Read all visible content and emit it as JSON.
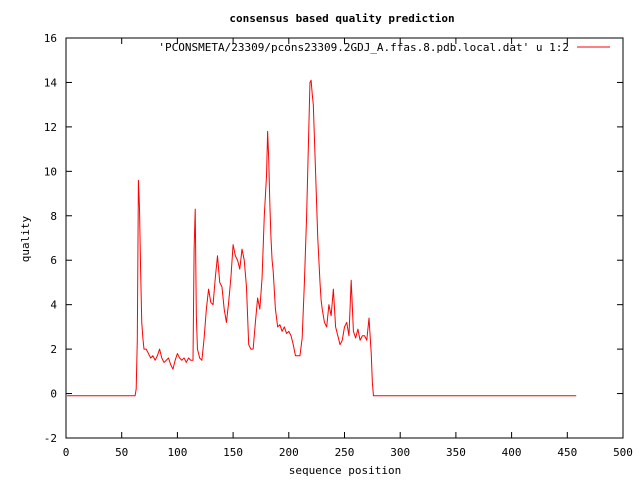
{
  "colors": {
    "series": "#ff0000",
    "axis": "#000000",
    "background": "#ffffff"
  },
  "chart_data": {
    "type": "line",
    "title": "consensus based quality prediction",
    "xlabel": "sequence position",
    "ylabel": "quality",
    "xlim": [
      0,
      500
    ],
    "ylim": [
      -2,
      16
    ],
    "xticks": [
      0,
      50,
      100,
      150,
      200,
      250,
      300,
      350,
      400,
      450,
      500
    ],
    "yticks": [
      -2,
      0,
      2,
      4,
      6,
      8,
      10,
      12,
      14,
      16
    ],
    "grid": false,
    "legend_position": "top-right",
    "series": [
      {
        "name": "'PCONSMETA/23309/pcons23309.2GDJ_A.ffas.8.pdb.local.dat' u 1:2",
        "color": "#ff0000",
        "x": [
          1,
          62,
          63,
          64,
          65,
          66,
          67,
          68,
          69,
          70,
          72,
          74,
          76,
          78,
          80,
          82,
          84,
          86,
          88,
          90,
          92,
          94,
          96,
          98,
          100,
          102,
          104,
          106,
          108,
          110,
          112,
          114,
          115,
          116,
          117,
          118,
          120,
          122,
          124,
          126,
          128,
          130,
          132,
          134,
          136,
          138,
          140,
          142,
          144,
          146,
          148,
          150,
          152,
          154,
          156,
          158,
          160,
          162,
          164,
          166,
          168,
          170,
          172,
          174,
          176,
          178,
          180,
          181,
          182,
          183,
          184,
          185,
          186,
          188,
          190,
          192,
          194,
          196,
          198,
          200,
          202,
          204,
          206,
          208,
          210,
          212,
          214,
          216,
          218,
          219,
          220,
          221,
          222,
          223,
          224,
          225,
          226,
          227,
          228,
          229,
          230,
          232,
          234,
          236,
          238,
          240,
          242,
          244,
          246,
          248,
          250,
          252,
          254,
          256,
          258,
          260,
          262,
          264,
          266,
          268,
          270,
          272,
          274,
          275,
          276,
          277,
          278,
          300,
          350,
          400,
          458
        ],
        "y": [
          -0.1,
          -0.1,
          0.2,
          2.4,
          9.6,
          8.3,
          5.5,
          3.2,
          2.5,
          2.0,
          2.0,
          1.8,
          1.6,
          1.7,
          1.5,
          1.7,
          2.0,
          1.6,
          1.4,
          1.5,
          1.6,
          1.3,
          1.1,
          1.5,
          1.8,
          1.6,
          1.5,
          1.6,
          1.4,
          1.6,
          1.5,
          1.5,
          6.5,
          8.3,
          3.5,
          2.0,
          1.6,
          1.5,
          2.5,
          3.8,
          4.7,
          4.1,
          4.0,
          5.2,
          6.2,
          5.0,
          4.8,
          3.8,
          3.2,
          4.1,
          5.2,
          6.7,
          6.2,
          6.0,
          5.6,
          6.5,
          6.0,
          4.8,
          2.2,
          2.0,
          2.0,
          3.2,
          4.3,
          3.8,
          5.2,
          8.0,
          9.8,
          11.8,
          10.5,
          8.5,
          7.0,
          6.0,
          5.5,
          3.8,
          3.0,
          3.1,
          2.8,
          3.0,
          2.7,
          2.8,
          2.6,
          2.2,
          1.7,
          1.7,
          1.7,
          2.5,
          5.0,
          8.0,
          12.0,
          14.0,
          14.1,
          13.5,
          13.0,
          11.5,
          10.0,
          8.5,
          7.0,
          6.0,
          5.0,
          4.2,
          3.8,
          3.2,
          3.0,
          4.0,
          3.5,
          4.7,
          3.0,
          2.6,
          2.2,
          2.4,
          3.0,
          3.2,
          2.6,
          5.1,
          2.8,
          2.5,
          2.9,
          2.4,
          2.6,
          2.6,
          2.4,
          3.4,
          1.8,
          0.5,
          -0.1,
          -0.1,
          -0.1,
          -0.1,
          -0.1,
          -0.1,
          -0.1
        ]
      }
    ]
  }
}
